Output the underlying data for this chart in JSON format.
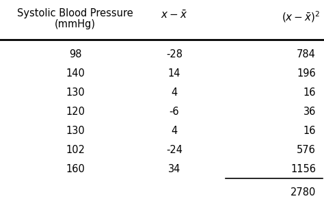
{
  "col1_values": [
    "98",
    "140",
    "130",
    "120",
    "130",
    "102",
    "160"
  ],
  "col2_values": [
    "-28",
    "14",
    "4",
    "-6",
    "4",
    "-24",
    "34"
  ],
  "col3_values": [
    "784",
    "196",
    "16",
    "36",
    "16",
    "576",
    "1156"
  ],
  "col3_total": "2780",
  "bg_color": "#ffffff",
  "text_color": "#000000",
  "font_size": 10.5,
  "header_font_size": 10.5
}
